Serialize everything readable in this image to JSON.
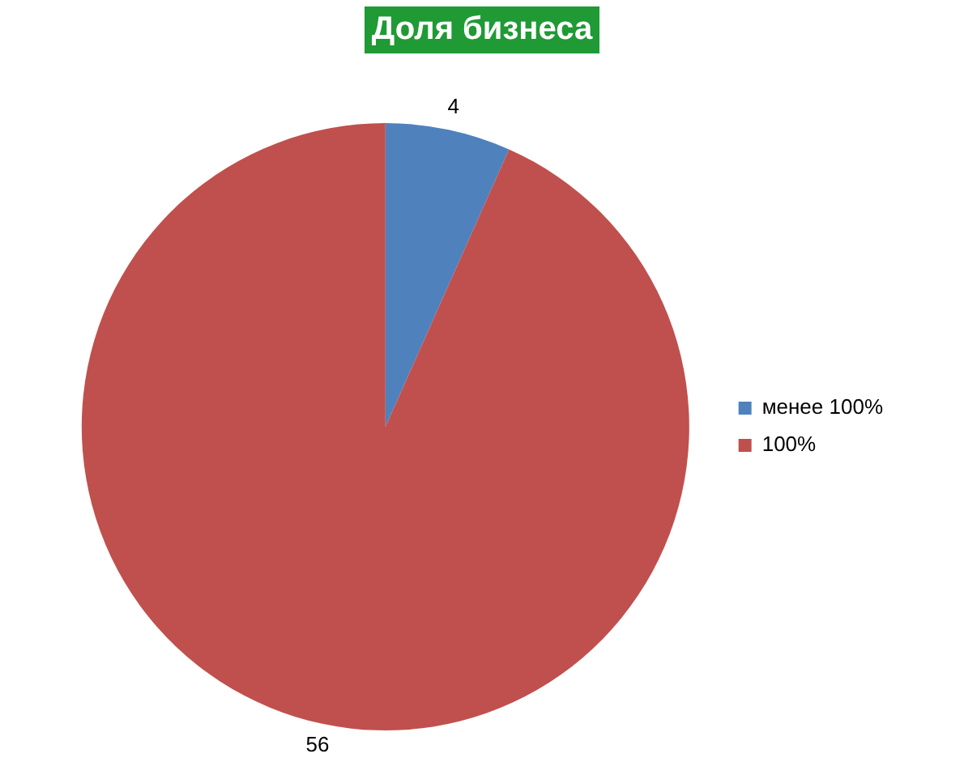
{
  "chart_data": {
    "type": "pie",
    "title": "Доля бизнеса",
    "categories": [
      "менее 100%",
      "100%"
    ],
    "values": [
      4,
      56
    ],
    "colors": [
      "#4f81bd",
      "#c0504d"
    ],
    "data_labels": true,
    "legend": "right"
  }
}
